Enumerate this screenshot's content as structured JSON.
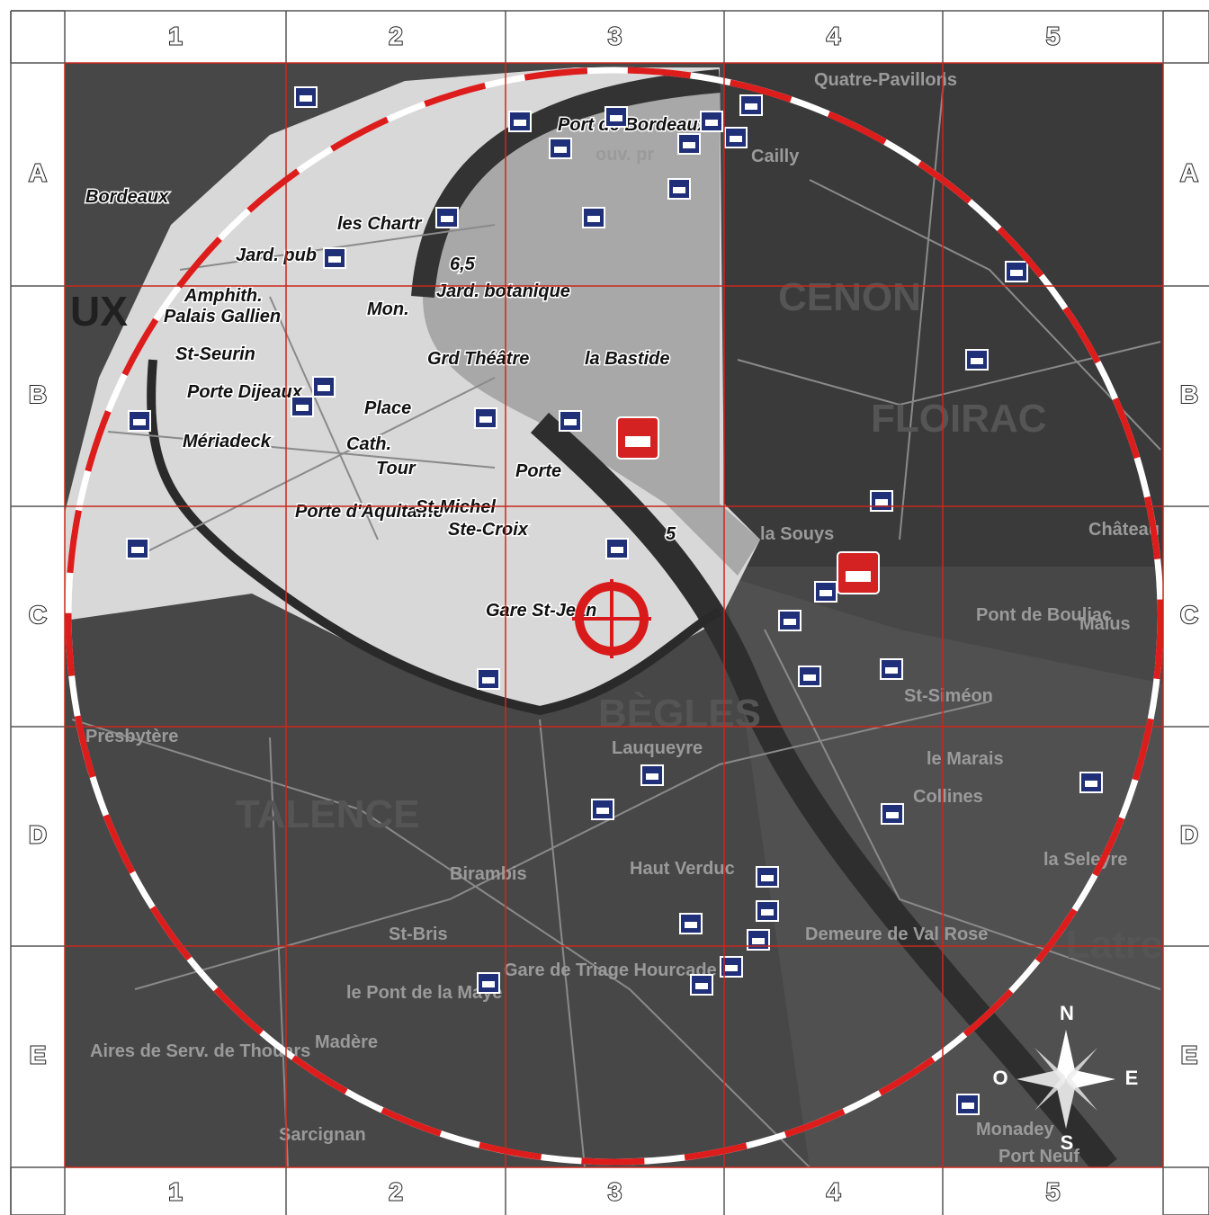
{
  "grid": {
    "columns": [
      "1",
      "2",
      "3",
      "4",
      "5"
    ],
    "rows": [
      "A",
      "B",
      "C",
      "D",
      "E"
    ]
  },
  "compass": {
    "north": "N",
    "east": "E",
    "south": "S",
    "west": "O"
  },
  "map_labels": [
    "UX",
    "Bordeaux",
    "les Chartr",
    "Jard. pub",
    "Amphith.",
    "Palais Gallien",
    "Mon.",
    "St-Seurin",
    "Porte Dijeaux",
    "Place",
    "Mériadeck",
    "Cath.",
    "Tour",
    "Porte d'Aquitaine",
    "St-Michel",
    "Ste-Croix",
    "Porte",
    "Gare St-Jean",
    "Jard. botanique",
    "Grd Théâtre",
    "la Bastide",
    "Port de Bordeaux",
    "ouv. pr",
    "6,5",
    "5",
    "CENON",
    "FLOIRAC",
    "la Souys",
    "Pont de Bouliac",
    "Malus",
    "Château du Drac",
    "St-Siméon",
    "BÈGLES",
    "le Marais",
    "Collines",
    "la Seleyre",
    "TALENCE",
    "Birambis",
    "St-Bris",
    "Haut Verduc",
    "Demeure de Val Rose",
    "Gare de Triage Hourcade",
    "le Pont de la Maye",
    "Madère",
    "Sarcignan",
    "Aires de Serv. de Thouars",
    "Monadey",
    "Port Neuf",
    "Latresne",
    "Presbytère",
    "Quatre-Pavillons",
    "Cailly",
    "Lauqueyre"
  ]
}
